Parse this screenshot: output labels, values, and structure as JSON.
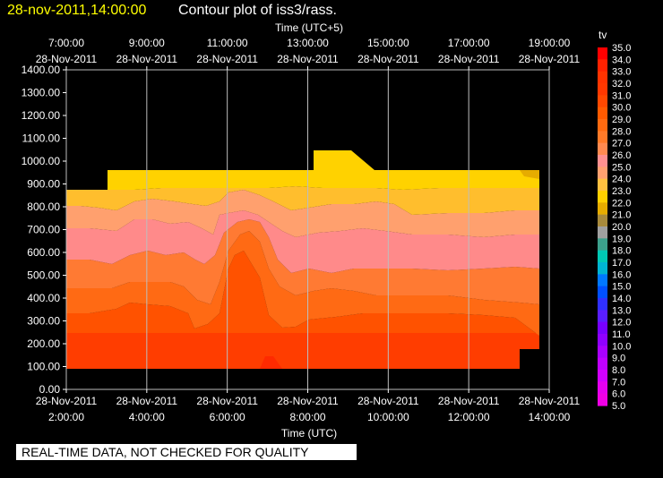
{
  "header": {
    "timestamp": "28-nov-2011,14:00:00",
    "title": "Contour plot of iss3/rass."
  },
  "chart_data": {
    "type": "heatmap",
    "xlabel_top": "Time (UTC+5)",
    "xlabel_bottom": "Time (UTC)",
    "ylim": [
      0,
      1400
    ],
    "xlim_utc": [
      "2011-11-28 02:00",
      "2011-11-28 14:00"
    ],
    "yticks": [
      "0.00",
      "100.00",
      "200.00",
      "300.00",
      "400.00",
      "500.00",
      "600.00",
      "700.00",
      "800.00",
      "900.00",
      "1000.00",
      "1100.00",
      "1200.00",
      "1300.00",
      "1400.00"
    ],
    "bottom_ticks": [
      {
        "date": "28-Nov-2011",
        "time": "2:00:00"
      },
      {
        "date": "28-Nov-2011",
        "time": "4:00:00"
      },
      {
        "date": "28-Nov-2011",
        "time": "6:00:00"
      },
      {
        "date": "28-Nov-2011",
        "time": "8:00:00"
      },
      {
        "date": "28-Nov-2011",
        "time": "10:00:00"
      },
      {
        "date": "28-Nov-2011",
        "time": "12:00:00"
      },
      {
        "date": "28-Nov-2011",
        "time": "14:00:00"
      }
    ],
    "top_ticks": [
      {
        "time": "7:00:00",
        "date": "28-Nov-2011"
      },
      {
        "time": "9:00:00",
        "date": "28-Nov-2011"
      },
      {
        "time": "11:00:00",
        "date": "28-Nov-2011"
      },
      {
        "time": "13:00:00",
        "date": "28-Nov-2011"
      },
      {
        "time": "15:00:00",
        "date": "28-Nov-2011"
      },
      {
        "time": "17:00:00",
        "date": "28-Nov-2011"
      },
      {
        "time": "19:00:00",
        "date": "28-Nov-2011"
      }
    ],
    "grid": true,
    "colorbar": {
      "title": "tv",
      "levels": [
        "35.0",
        "34.0",
        "33.0",
        "32.0",
        "31.0",
        "30.0",
        "29.0",
        "28.0",
        "27.0",
        "26.0",
        "25.0",
        "24.0",
        "23.0",
        "22.0",
        "21.0",
        "20.0",
        "19.0",
        "18.0",
        "17.0",
        "16.0",
        "15.0",
        "14.0",
        "13.0",
        "12.0",
        "11.0",
        "10.0",
        "9.0",
        "8.0",
        "7.0",
        "6.0",
        "5.0"
      ],
      "colors": [
        "#ff0000",
        "#ff2200",
        "#ff3300",
        "#ff3800",
        "#ff4800",
        "#ff5a00",
        "#ff6a10",
        "#ff7a28",
        "#ff8a50",
        "#ff9090",
        "#ffa070",
        "#ffc040",
        "#ffd000",
        "#e6ac00",
        "#a88a3c",
        "#a0a0a0",
        "#3ca08c",
        "#00c8b4",
        "#00b4d2",
        "#0078ff",
        "#0050ff",
        "#3030ff",
        "#5a1eff",
        "#7800ff",
        "#9000ff",
        "#aa00ff",
        "#c000ff",
        "#d200ff",
        "#e600f0",
        "#f000e6"
      ]
    }
  },
  "footer": {
    "disclaimer": "REAL-TIME DATA, NOT CHECKED FOR QUALITY"
  }
}
